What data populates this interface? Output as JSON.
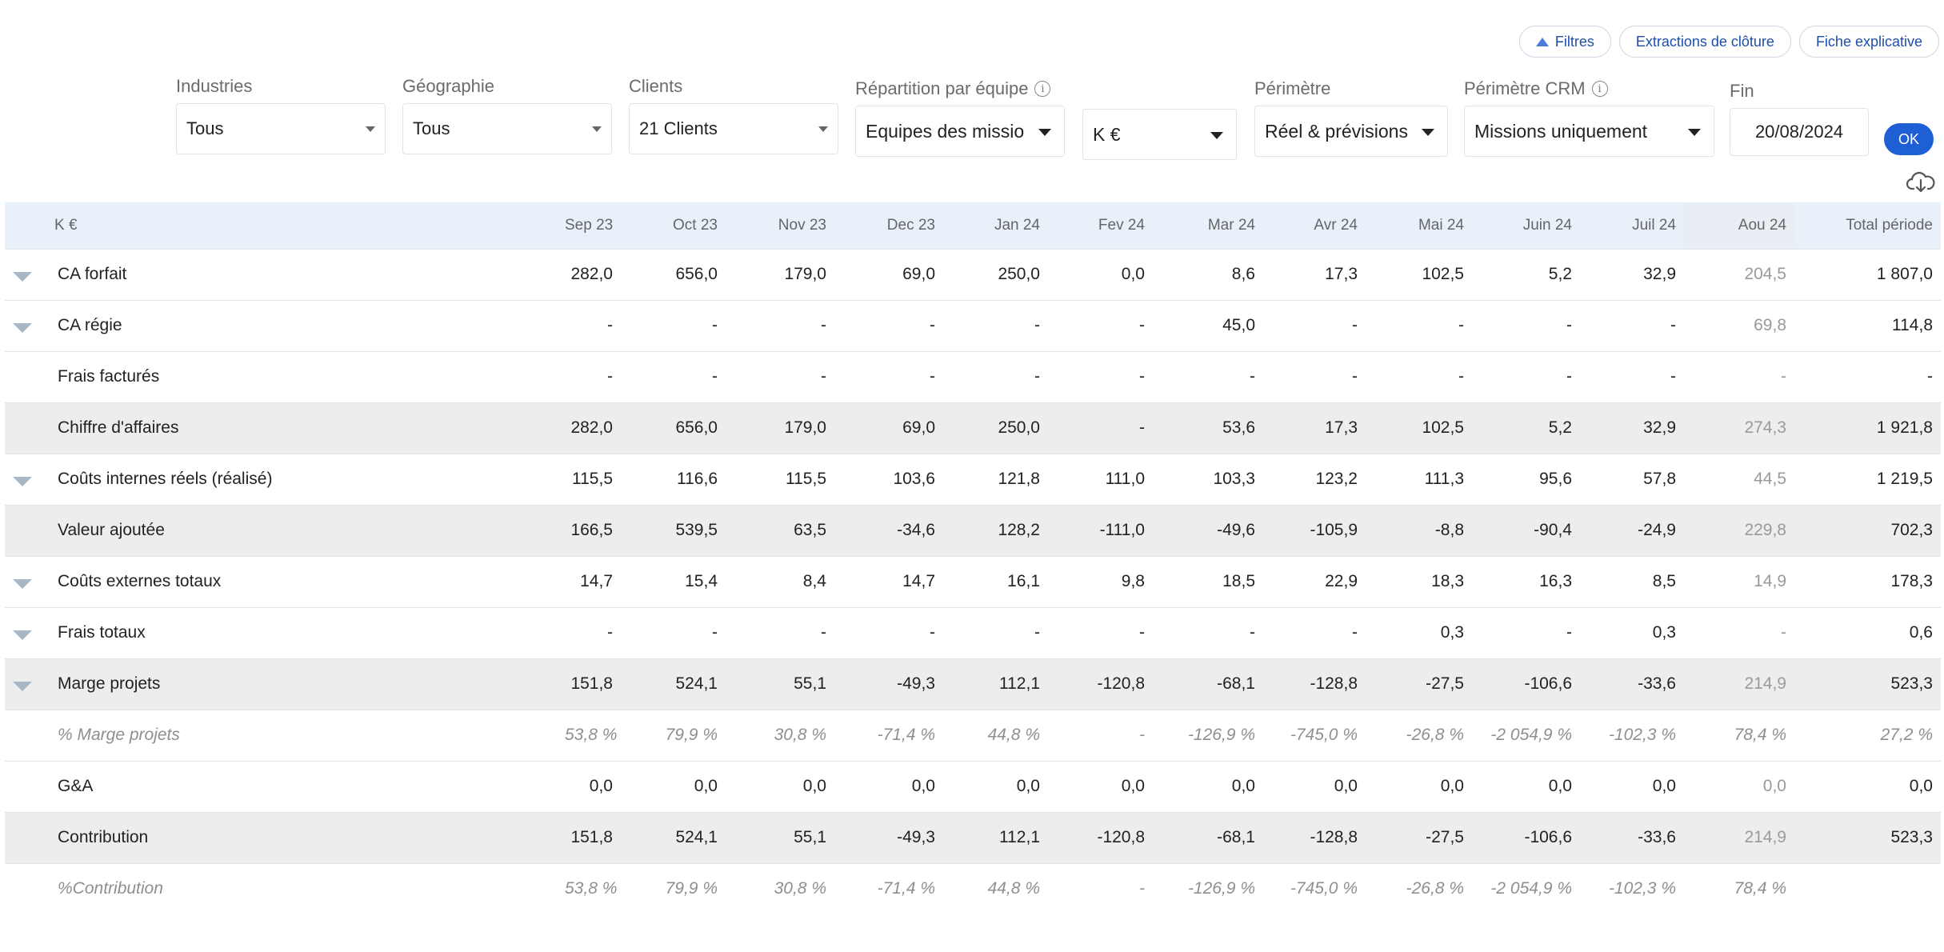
{
  "topbar": {
    "filters_label": "Filtres",
    "extractions_label": "Extractions de clôture",
    "fiche_label": "Fiche explicative"
  },
  "filters": {
    "industries": {
      "label": "Industries",
      "value": "Tous"
    },
    "geographie": {
      "label": "Géographie",
      "value": "Tous"
    },
    "clients": {
      "label": "Clients",
      "value": "21 Clients"
    },
    "repartition": {
      "label": "Répartition par équipe",
      "value": "Equipes des missio",
      "info": "i"
    },
    "unite": {
      "value": "K €"
    },
    "perimetre": {
      "label": "Périmètre",
      "value": "Réel & prévisions"
    },
    "perimetre_crm": {
      "label": "Périmètre CRM",
      "value": "Missions uniquement",
      "info": "i"
    },
    "fin": {
      "label": "Fin",
      "value": "20/08/2024"
    },
    "ok_label": "OK"
  },
  "icons": {
    "collapse": "chevron-down-icon",
    "download": "cloud-download-icon",
    "info": "info-icon"
  },
  "table": {
    "unit_header": "K €",
    "columns": [
      "Sep 23",
      "Oct 23",
      "Nov 23",
      "Dec 23",
      "Jan 24",
      "Fev 24",
      "Mar 24",
      "Avr 24",
      "Mai 24",
      "Juin 24",
      "Juil 24",
      "Aou 24",
      "Total période"
    ],
    "rows": [
      {
        "label": "CA forfait",
        "values": [
          "282,0",
          "656,0",
          "179,0",
          "69,0",
          "250,0",
          "0,0",
          "8,6",
          "17,3",
          "102,5",
          "5,2",
          "32,9",
          "204,5",
          "1 807,0"
        ]
      },
      {
        "label": "CA régie",
        "values": [
          "-",
          "-",
          "-",
          "-",
          "-",
          "-",
          "45,0",
          "-",
          "-",
          "-",
          "-",
          "69,8",
          "114,8"
        ]
      },
      {
        "label": "Frais facturés",
        "values": [
          "-",
          "-",
          "-",
          "-",
          "-",
          "-",
          "-",
          "-",
          "-",
          "-",
          "-",
          "-",
          "-"
        ]
      },
      {
        "label": "Chiffre d'affaires",
        "values": [
          "282,0",
          "656,0",
          "179,0",
          "69,0",
          "250,0",
          "-",
          "53,6",
          "17,3",
          "102,5",
          "5,2",
          "32,9",
          "274,3",
          "1 921,8"
        ]
      },
      {
        "label": "Coûts internes réels (réalisé)",
        "values": [
          "115,5",
          "116,6",
          "115,5",
          "103,6",
          "121,8",
          "111,0",
          "103,3",
          "123,2",
          "111,3",
          "95,6",
          "57,8",
          "44,5",
          "1 219,5"
        ]
      },
      {
        "label": "Valeur ajoutée",
        "values": [
          "166,5",
          "539,5",
          "63,5",
          "-34,6",
          "128,2",
          "-111,0",
          "-49,6",
          "-105,9",
          "-8,8",
          "-90,4",
          "-24,9",
          "229,8",
          "702,3"
        ]
      },
      {
        "label": "Coûts externes totaux",
        "values": [
          "14,7",
          "15,4",
          "8,4",
          "14,7",
          "16,1",
          "9,8",
          "18,5",
          "22,9",
          "18,3",
          "16,3",
          "8,5",
          "14,9",
          "178,3"
        ]
      },
      {
        "label": "Frais totaux",
        "values": [
          "-",
          "-",
          "-",
          "-",
          "-",
          "-",
          "-",
          "-",
          "0,3",
          "-",
          "0,3",
          "-",
          "0,6"
        ]
      },
      {
        "label": "Marge projets",
        "values": [
          "151,8",
          "524,1",
          "55,1",
          "-49,3",
          "112,1",
          "-120,8",
          "-68,1",
          "-128,8",
          "-27,5",
          "-106,6",
          "-33,6",
          "214,9",
          "523,3"
        ]
      },
      {
        "label": "% Marge projets",
        "values": [
          "53,8 %",
          "79,9 %",
          "30,8 %",
          "-71,4 %",
          "44,8 %",
          "-",
          "-126,9 %",
          "-745,0 %",
          "-26,8 %",
          "-2 054,9 %",
          "-102,3 %",
          "78,4 %",
          "27,2 %"
        ]
      },
      {
        "label": "G&A",
        "values": [
          "0,0",
          "0,0",
          "0,0",
          "0,0",
          "0,0",
          "0,0",
          "0,0",
          "0,0",
          "0,0",
          "0,0",
          "0,0",
          "0,0",
          "0,0"
        ]
      },
      {
        "label": "Contribution",
        "values": [
          "151,8",
          "524,1",
          "55,1",
          "-49,3",
          "112,1",
          "-120,8",
          "-68,1",
          "-128,8",
          "-27,5",
          "-106,6",
          "-33,6",
          "214,9",
          "523,3"
        ]
      },
      {
        "label": "%Contribution",
        "values": [
          "53,8 %",
          "79,9 %",
          "30,8 %",
          "-71,4 %",
          "44,8 %",
          "-",
          "-126,9 %",
          "-745,0 %",
          "-26,8 %",
          "-2 054,9 %",
          "-102,3 %",
          "78,4 %",
          ""
        ]
      }
    ]
  }
}
